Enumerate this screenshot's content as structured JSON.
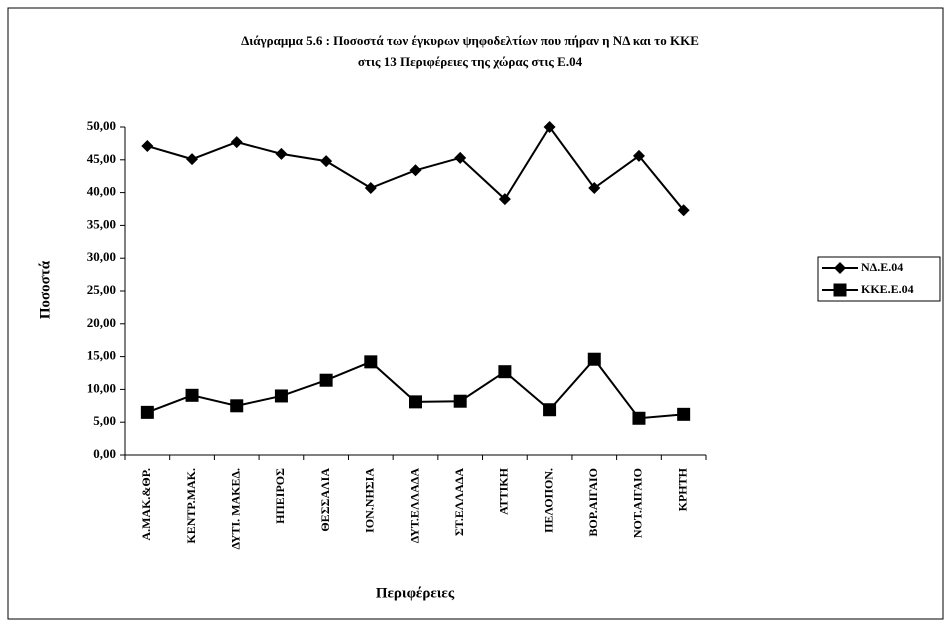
{
  "chart_data": {
    "type": "line",
    "title": "Διάγραμμα 5.6 : Ποσοστά των έγκυρων ψηφοδελτίων που πήραν η ΝΔ και το ΚΚΕ",
    "subtitle": "στις 13 Περιφέρειες της χώρας στις Ε.04",
    "x_label": "Περιφέρειες",
    "y_label": "Ποσοστά",
    "categories": [
      "Α.ΜΑΚ.&ΘΡ.",
      "ΚΕΝΤΡ.ΜΑΚ.",
      "ΔΥΤΙ. ΜΑΚΕΔ.",
      "ΗΠΕΙΡΟΣ",
      "ΘΕΣΣΑΛΙΑ",
      "ΙΟΝ.ΝΗΣΙΑ",
      "ΔΥΤ.ΕΛΛΑΔΑ",
      "ΣΤ.ΕΛΛΑΔΑ",
      "ΑΤΤΙΚΗ",
      "ΠΕΛΟΠΟΝ.",
      "ΒΟΡ.ΑΙΓΑΙΟ",
      "ΝΟΤ.ΑΙΓΑΙΟ",
      "ΚΡΗΤΗ"
    ],
    "series": [
      {
        "name": "ΝΔ.Ε.04",
        "color": "#000000",
        "marker": "diamond",
        "values": [
          47.1,
          45.1,
          47.7,
          45.9,
          44.8,
          40.7,
          43.4,
          45.3,
          39.0,
          50.0,
          40.7,
          45.6,
          37.3
        ]
      },
      {
        "name": "ΚΚΕ.Ε.04",
        "color": "#000000",
        "marker": "square",
        "values": [
          6.5,
          9.1,
          7.5,
          9.0,
          11.4,
          14.2,
          8.1,
          8.2,
          12.7,
          6.9,
          14.6,
          5.6,
          6.2
        ]
      }
    ],
    "ylim": [
      0,
      50
    ],
    "yticks": [
      {
        "value": 0,
        "label": "0,00"
      },
      {
        "value": 5,
        "label": "5,00"
      },
      {
        "value": 10,
        "label": "10,00"
      },
      {
        "value": 15,
        "label": "15,00"
      },
      {
        "value": 20,
        "label": "20,00"
      },
      {
        "value": 25,
        "label": "25,00"
      },
      {
        "value": 30,
        "label": "30,00"
      },
      {
        "value": 35,
        "label": "35,00"
      },
      {
        "value": 40,
        "label": "40,00"
      },
      {
        "value": 45,
        "label": "45,00"
      },
      {
        "value": 50,
        "label": "50,00"
      }
    ],
    "grid": false,
    "legend": "right"
  }
}
